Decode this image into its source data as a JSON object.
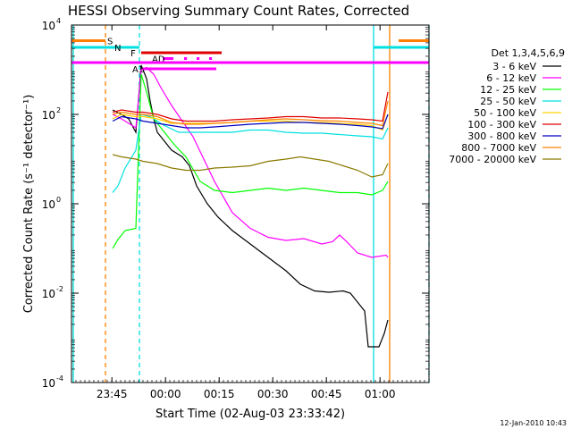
{
  "chart_data": {
    "type": "line",
    "title": "HESSI Observing Summary Count Rates, Corrected",
    "xlabel": "Start Time (02-Aug-03 23:33:42)",
    "ylabel": "Corrected Count Rate (s⁻¹ detector⁻¹)",
    "y_scale": "log",
    "ylim": [
      0.0001,
      10000
    ],
    "xlim_minutes": [
      0,
      100
    ],
    "x_ticks": [
      {
        "label": "23:45",
        "t": 11.3
      },
      {
        "label": "00:00",
        "t": 26.3
      },
      {
        "label": "00:15",
        "t": 41.3
      },
      {
        "label": "00:30",
        "t": 56.3
      },
      {
        "label": "00:45",
        "t": 71.3
      },
      {
        "label": "01:00",
        "t": 86.3
      }
    ],
    "y_ticks": [
      {
        "exp": -4,
        "label_base": "10",
        "label_exp": "-4"
      },
      {
        "exp": -2,
        "label_base": "10",
        "label_exp": "-2"
      },
      {
        "exp": 0,
        "label_base": "10",
        "label_exp": "0"
      },
      {
        "exp": 2,
        "label_base": "10",
        "label_exp": "2"
      },
      {
        "exp": 4,
        "label_base": "10",
        "label_exp": "4"
      }
    ],
    "legend_title": "Det 1,3,4,5,6,9",
    "legend_position": "right",
    "timestamp": "12-Jan-2010 10:43",
    "flag_bars": [
      {
        "label": "S",
        "color": "#ff8000",
        "segments": [
          [
            0,
            9.5
          ],
          [
            91.5,
            100
          ]
        ],
        "level": 3.65
      },
      {
        "label": "N",
        "color": "#00e0e0",
        "segments": [
          [
            0,
            19
          ],
          [
            84.5,
            100
          ]
        ],
        "level": 3.5
      },
      {
        "label": "F",
        "color": "#e00000",
        "segments": [
          [
            19.5,
            42
          ]
        ],
        "level": 3.38
      },
      {
        "label": "AD",
        "color": "#ff00ff",
        "segments": [
          [
            25.5,
            28.5
          ],
          [
            31.5,
            32.3
          ],
          [
            35,
            35.8
          ],
          [
            38.5,
            39.3
          ]
        ],
        "level": 3.25
      },
      {
        "label": "",
        "color": "#ff00ff",
        "segments": [
          [
            0,
            100
          ]
        ],
        "level": 3.16
      },
      {
        "label": "A1",
        "color": "#ff00ff",
        "segments": [
          [
            20,
            40.5
          ]
        ],
        "level": 3.02
      }
    ],
    "vertical_lines": [
      {
        "t": 0.5,
        "color": "#00e0e0",
        "style": "solid"
      },
      {
        "t": 9.5,
        "color": "#ff8000",
        "style": "dashed"
      },
      {
        "t": 19,
        "color": "#00e0e0",
        "style": "dashed"
      },
      {
        "t": 84.5,
        "color": "#00e0e0",
        "style": "solid"
      },
      {
        "t": 89,
        "color": "#ff8000",
        "style": "solid"
      },
      {
        "t": 100,
        "color": "#00e0e0",
        "style": "dashed"
      }
    ],
    "series": [
      {
        "name": "3 - 6 keV",
        "color": "#000000",
        "points": [
          [
            11.5,
            2.1
          ],
          [
            14,
            2.0
          ],
          [
            16,
            1.9
          ],
          [
            18,
            1.6
          ],
          [
            19.5,
            3.1
          ],
          [
            21,
            2.8
          ],
          [
            22,
            2.3
          ],
          [
            23,
            1.9
          ],
          [
            24,
            1.6
          ],
          [
            26,
            1.4
          ],
          [
            28,
            1.2
          ],
          [
            31,
            1.05
          ],
          [
            33,
            0.85
          ],
          [
            35,
            0.4
          ],
          [
            38,
            0
          ],
          [
            41,
            -0.3
          ],
          [
            45,
            -0.6
          ],
          [
            50,
            -0.9
          ],
          [
            55,
            -1.2
          ],
          [
            60,
            -1.5
          ],
          [
            64,
            -1.8
          ],
          [
            68,
            -1.95
          ],
          [
            72,
            -1.98
          ],
          [
            76,
            -1.95
          ],
          [
            78,
            -2.0
          ],
          [
            81,
            -2.3
          ],
          [
            82,
            -2.4
          ],
          [
            83,
            -3.2
          ],
          [
            86,
            -3.2
          ],
          [
            87.5,
            -2.9
          ],
          [
            88.5,
            -2.6
          ]
        ]
      },
      {
        "name": "6 - 12 keV",
        "color": "#ff00ff",
        "points": [
          [
            11.5,
            2.0
          ],
          [
            14,
            1.9
          ],
          [
            16,
            1.8
          ],
          [
            18,
            1.7
          ],
          [
            19.5,
            3.0
          ],
          [
            21,
            3.05
          ],
          [
            23,
            2.9
          ],
          [
            25,
            2.6
          ],
          [
            28,
            2.2
          ],
          [
            31,
            1.85
          ],
          [
            34,
            1.5
          ],
          [
            37,
            1.0
          ],
          [
            40,
            0.5
          ],
          [
            45,
            -0.2
          ],
          [
            50,
            -0.55
          ],
          [
            55,
            -0.75
          ],
          [
            60,
            -0.82
          ],
          [
            65,
            -0.78
          ],
          [
            70,
            -0.9
          ],
          [
            73,
            -0.85
          ],
          [
            75,
            -0.7
          ],
          [
            77,
            -0.85
          ],
          [
            80,
            -1.1
          ],
          [
            84,
            -1.2
          ],
          [
            88,
            -1.15
          ],
          [
            88.5,
            -1.2
          ]
        ]
      },
      {
        "name": "12 - 25 keV",
        "color": "#00ff00",
        "points": [
          [
            11.5,
            -1.0
          ],
          [
            13,
            -0.8
          ],
          [
            15,
            -0.6
          ],
          [
            18,
            -0.55
          ],
          [
            19.5,
            2.9
          ],
          [
            21,
            2.5
          ],
          [
            23,
            1.9
          ],
          [
            26,
            1.6
          ],
          [
            29,
            1.3
          ],
          [
            32,
            1.05
          ],
          [
            36,
            0.5
          ],
          [
            40,
            0.3
          ],
          [
            45,
            0.25
          ],
          [
            50,
            0.3
          ],
          [
            55,
            0.35
          ],
          [
            60,
            0.3
          ],
          [
            65,
            0.35
          ],
          [
            70,
            0.3
          ],
          [
            75,
            0.25
          ],
          [
            80,
            0.25
          ],
          [
            84,
            0.2
          ],
          [
            87,
            0.3
          ],
          [
            88.5,
            0.5
          ]
        ]
      },
      {
        "name": "25 - 50 keV",
        "color": "#00e0e0",
        "points": [
          [
            11.5,
            0.25
          ],
          [
            13,
            0.4
          ],
          [
            15,
            0.8
          ],
          [
            18,
            1.2
          ],
          [
            19.5,
            2.0
          ],
          [
            22,
            1.95
          ],
          [
            26,
            1.75
          ],
          [
            30,
            1.6
          ],
          [
            34,
            1.6
          ],
          [
            40,
            1.6
          ],
          [
            45,
            1.6
          ],
          [
            50,
            1.65
          ],
          [
            55,
            1.65
          ],
          [
            60,
            1.6
          ],
          [
            65,
            1.58
          ],
          [
            70,
            1.58
          ],
          [
            75,
            1.55
          ],
          [
            80,
            1.52
          ],
          [
            84,
            1.5
          ],
          [
            87,
            1.45
          ],
          [
            88.5,
            1.7
          ]
        ]
      },
      {
        "name": "50 - 100 keV",
        "color": "#ffd000",
        "points": [
          [
            11.5,
            1.9
          ],
          [
            14,
            2.0
          ],
          [
            18,
            1.95
          ],
          [
            20,
            1.95
          ],
          [
            24,
            1.9
          ],
          [
            28,
            1.8
          ],
          [
            32,
            1.8
          ],
          [
            36,
            1.8
          ],
          [
            40,
            1.8
          ],
          [
            45,
            1.82
          ],
          [
            50,
            1.85
          ],
          [
            55,
            1.85
          ],
          [
            60,
            1.85
          ],
          [
            65,
            1.82
          ],
          [
            70,
            1.82
          ],
          [
            75,
            1.8
          ],
          [
            80,
            1.78
          ],
          [
            84,
            1.75
          ],
          [
            87,
            1.65
          ],
          [
            88.5,
            2.0
          ]
        ]
      },
      {
        "name": "100 - 300 keV",
        "color": "#e00000",
        "points": [
          [
            11.5,
            2.05
          ],
          [
            14,
            2.1
          ],
          [
            18,
            2.05
          ],
          [
            20,
            2.05
          ],
          [
            24,
            2.0
          ],
          [
            28,
            1.9
          ],
          [
            32,
            1.85
          ],
          [
            36,
            1.85
          ],
          [
            40,
            1.85
          ],
          [
            45,
            1.88
          ],
          [
            50,
            1.9
          ],
          [
            55,
            1.92
          ],
          [
            60,
            1.95
          ],
          [
            65,
            1.95
          ],
          [
            70,
            1.92
          ],
          [
            75,
            1.92
          ],
          [
            80,
            1.9
          ],
          [
            84,
            1.88
          ],
          [
            87,
            1.85
          ],
          [
            88.5,
            2.5
          ]
        ]
      },
      {
        "name": "300 - 800 keV",
        "color": "#0000c0",
        "points": [
          [
            11.5,
            1.85
          ],
          [
            14,
            1.95
          ],
          [
            18,
            1.9
          ],
          [
            20,
            1.85
          ],
          [
            24,
            1.8
          ],
          [
            28,
            1.75
          ],
          [
            32,
            1.7
          ],
          [
            36,
            1.7
          ],
          [
            40,
            1.72
          ],
          [
            45,
            1.75
          ],
          [
            50,
            1.78
          ],
          [
            55,
            1.8
          ],
          [
            60,
            1.82
          ],
          [
            65,
            1.82
          ],
          [
            70,
            1.8
          ],
          [
            75,
            1.78
          ],
          [
            80,
            1.75
          ],
          [
            84,
            1.72
          ],
          [
            87,
            1.68
          ],
          [
            88.5,
            2.0
          ]
        ]
      },
      {
        "name": "800 - 7000 keV",
        "color": "#ff8000",
        "points": [
          [
            11.5,
            2.0
          ],
          [
            14,
            2.05
          ],
          [
            18,
            2.0
          ],
          [
            20,
            2.0
          ],
          [
            24,
            1.95
          ],
          [
            28,
            1.82
          ],
          [
            32,
            1.78
          ],
          [
            36,
            1.78
          ],
          [
            40,
            1.8
          ],
          [
            45,
            1.82
          ],
          [
            50,
            1.85
          ],
          [
            55,
            1.88
          ],
          [
            60,
            1.9
          ],
          [
            65,
            1.88
          ],
          [
            70,
            1.86
          ],
          [
            75,
            1.85
          ],
          [
            80,
            1.82
          ],
          [
            84,
            1.8
          ],
          [
            87,
            1.75
          ],
          [
            88.5,
            2.3
          ]
        ]
      },
      {
        "name": "7000 - 20000 keV",
        "color": "#8b7a00",
        "points": [
          [
            11.5,
            1.1
          ],
          [
            14,
            1.05
          ],
          [
            18,
            1.0
          ],
          [
            20,
            0.95
          ],
          [
            24,
            0.9
          ],
          [
            28,
            0.8
          ],
          [
            32,
            0.75
          ],
          [
            36,
            0.75
          ],
          [
            40,
            0.8
          ],
          [
            45,
            0.82
          ],
          [
            50,
            0.85
          ],
          [
            55,
            0.95
          ],
          [
            60,
            1.0
          ],
          [
            64,
            1.05
          ],
          [
            68,
            1.0
          ],
          [
            72,
            0.95
          ],
          [
            76,
            0.85
          ],
          [
            80,
            0.75
          ],
          [
            84,
            0.6
          ],
          [
            87,
            0.65
          ],
          [
            88.5,
            0.9
          ]
        ]
      }
    ]
  }
}
